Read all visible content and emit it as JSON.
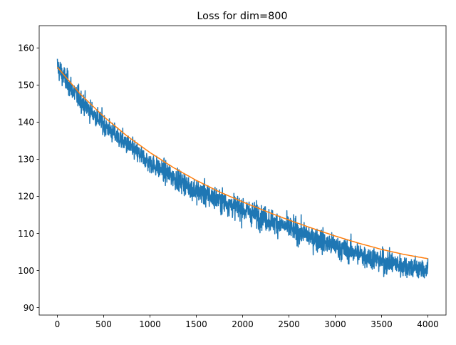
{
  "chart_data": {
    "type": "line",
    "title": "Loss for dim=800",
    "xlabel": "",
    "ylabel": "",
    "xlim": [
      -196,
      4196
    ],
    "ylim": [
      88,
      166
    ],
    "xticks": [
      0,
      500,
      1000,
      1500,
      2000,
      2500,
      3000,
      3500,
      4000
    ],
    "yticks": [
      90,
      100,
      110,
      120,
      130,
      140,
      150,
      160
    ],
    "grid": false,
    "legend": "none",
    "series": [
      {
        "color": "#1f77b4",
        "style": "noisy raw loss",
        "x": [
          0,
          100,
          200,
          300,
          400,
          500,
          600,
          700,
          800,
          900,
          1000,
          1100,
          1200,
          1300,
          1400,
          1500,
          1600,
          1700,
          1800,
          1900,
          2000,
          2100,
          2200,
          2300,
          2400,
          2500,
          2600,
          2700,
          2800,
          2900,
          3000,
          3100,
          3200,
          3300,
          3400,
          3500,
          3600,
          3700,
          3800,
          3900,
          4000
        ],
        "center": [
          155,
          151,
          147.5,
          144.5,
          142,
          139.5,
          137,
          135,
          133,
          131,
          129,
          127.5,
          126,
          124.5,
          123,
          121.5,
          120.5,
          119.5,
          118.5,
          117.5,
          116.5,
          115.5,
          114.5,
          113.5,
          112.5,
          111.5,
          110.5,
          109.5,
          108.5,
          107.5,
          106.5,
          105.5,
          105,
          104,
          103.5,
          102.5,
          102,
          101.5,
          101,
          100.5,
          100
        ],
        "upper": [
          163,
          160,
          155,
          153,
          150,
          149,
          146,
          143,
          141,
          139,
          137,
          136,
          135,
          134,
          132,
          131,
          130,
          129,
          128,
          127,
          126,
          125,
          124,
          123,
          122,
          121,
          120,
          119,
          118,
          118,
          116,
          115,
          114,
          114,
          113,
          112,
          111,
          111,
          110,
          109,
          108
        ],
        "lower": [
          146,
          143,
          139,
          137,
          135,
          133,
          131,
          128,
          126,
          124,
          122,
          121,
          119,
          118,
          116,
          113,
          112,
          111,
          111,
          110,
          108,
          107,
          106,
          106,
          105,
          104,
          103,
          102,
          101,
          100,
          99,
          98,
          97,
          97,
          96,
          95,
          94,
          94,
          93,
          93,
          92
        ]
      },
      {
        "color": "#ff7f0e",
        "style": "smooth trend",
        "x": [
          0,
          250,
          500,
          750,
          1000,
          1250,
          1500,
          1750,
          2000,
          2250,
          2500,
          2750,
          3000,
          3250,
          3500,
          3750,
          4000
        ],
        "values": [
          154.8,
          147.5,
          141.5,
          136.3,
          131.8,
          127.8,
          124.3,
          121.2,
          118.5,
          116.0,
          113.6,
          111.4,
          109.3,
          107.4,
          105.7,
          104.3,
          103.2
        ]
      }
    ]
  }
}
